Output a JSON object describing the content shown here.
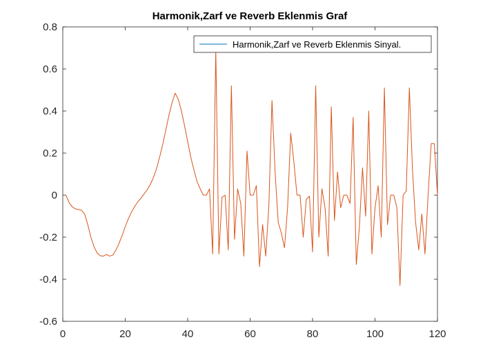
{
  "chart_data": {
    "type": "line",
    "title": "Harmonik,Zarf ve Reverb Eklenmis Graf",
    "xlabel": "",
    "ylabel": "",
    "xlim": [
      0,
      120
    ],
    "ylim": [
      -0.6,
      0.8
    ],
    "x_ticks": [
      0,
      20,
      40,
      60,
      80,
      100,
      120
    ],
    "y_ticks": [
      -0.6,
      -0.4,
      -0.2,
      0,
      0.2,
      0.4,
      0.6,
      0.8
    ],
    "grid": false,
    "legend_position": "top-right",
    "legend_swatch_color": "#0072bd",
    "series": [
      {
        "name": "Harmonik,Zarf ve Reverb Eklenmis Sinyal.",
        "color": "#d95319",
        "x": [
          1,
          2,
          3,
          4,
          5,
          6,
          7,
          8,
          9,
          10,
          11,
          12,
          13,
          14,
          15,
          16,
          17,
          18,
          19,
          20,
          21,
          22,
          23,
          24,
          25,
          26,
          27,
          28,
          29,
          30,
          31,
          32,
          33,
          34,
          35,
          36,
          37,
          38,
          39,
          40,
          41,
          42,
          43,
          44,
          45,
          46,
          47,
          48,
          49,
          50,
          51,
          52,
          53,
          54,
          55,
          56,
          57,
          58,
          59,
          60,
          61,
          62,
          63,
          64,
          65,
          66,
          67,
          68,
          69,
          70,
          71,
          72,
          73,
          74,
          75,
          76,
          77,
          78,
          79,
          80,
          81,
          82,
          83,
          84,
          85,
          86,
          87,
          88,
          89,
          90,
          91,
          92,
          93,
          94,
          95,
          96,
          97,
          98,
          99,
          100,
          101,
          102,
          103,
          104,
          105,
          106,
          107,
          108,
          109,
          110,
          111,
          112,
          113,
          114,
          115,
          116,
          117,
          118,
          119,
          120
        ],
        "y": [
          0.0,
          -0.035,
          -0.055,
          -0.065,
          -0.068,
          -0.072,
          -0.09,
          -0.14,
          -0.2,
          -0.245,
          -0.275,
          -0.288,
          -0.29,
          -0.282,
          -0.29,
          -0.285,
          -0.262,
          -0.23,
          -0.192,
          -0.15,
          -0.112,
          -0.08,
          -0.055,
          -0.032,
          -0.015,
          0.005,
          0.025,
          0.05,
          0.082,
          0.125,
          0.18,
          0.24,
          0.31,
          0.38,
          0.44,
          0.485,
          0.455,
          0.4,
          0.33,
          0.255,
          0.18,
          0.12,
          0.065,
          0.03,
          0.0,
          0.0,
          0.03,
          -0.28,
          0.69,
          -0.28,
          -0.01,
          0.0,
          -0.26,
          0.52,
          -0.21,
          0.03,
          -0.04,
          -0.29,
          0.21,
          0.0,
          0.0,
          0.045,
          -0.34,
          -0.14,
          -0.29,
          -0.05,
          0.45,
          0.11,
          -0.13,
          -0.18,
          -0.25,
          -0.06,
          0.295,
          0.16,
          0.0,
          0.0,
          -0.2,
          -0.02,
          -0.005,
          -0.27,
          0.52,
          -0.2,
          0.03,
          -0.06,
          -0.29,
          0.42,
          -0.12,
          0.11,
          -0.06,
          0.0,
          0.0,
          -0.04,
          0.37,
          -0.33,
          -0.15,
          0.13,
          -0.1,
          0.4,
          -0.28,
          -0.06,
          0.045,
          -0.2,
          0.51,
          -0.14,
          0.0,
          0.0,
          -0.06,
          -0.43,
          0.0,
          0.02,
          0.51,
          0.12,
          -0.13,
          -0.26,
          -0.09,
          -0.28,
          0.0,
          0.245,
          0.245,
          0.0
        ]
      }
    ]
  }
}
